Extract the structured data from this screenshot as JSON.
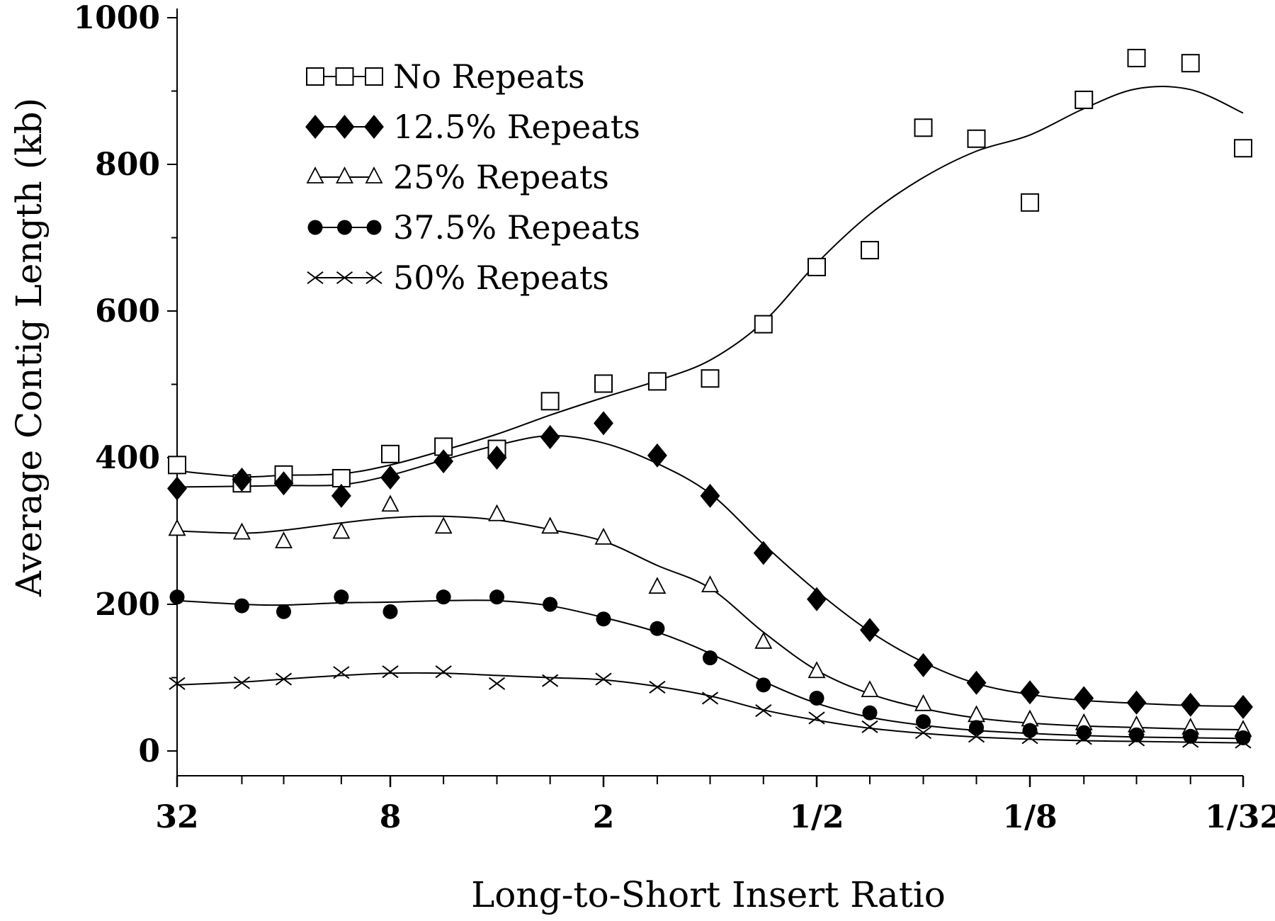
{
  "chart_data": {
    "type": "scatter",
    "title": "",
    "xlabel": "Long-to-Short Insert Ratio",
    "ylabel": "Average Contig Length (kb)",
    "x_scale": "log2 (reversed)",
    "x_ticks": [
      "32",
      "8",
      "2",
      "1/2",
      "1/8",
      "1/32"
    ],
    "x_tick_values": [
      32,
      8,
      2,
      0.5,
      0.125,
      0.03125
    ],
    "y_ticks": [
      "0",
      "200",
      "400",
      "600",
      "800",
      "1000"
    ],
    "ylim": [
      0,
      1000
    ],
    "grid": false,
    "legend_position": "top-left",
    "x": [
      32,
      21,
      16,
      11,
      8,
      5.66,
      4,
      2.83,
      2,
      1.41,
      1,
      0.707,
      0.5,
      0.354,
      0.25,
      0.177,
      0.125,
      0.088,
      0.0625,
      0.044,
      0.03125
    ],
    "series": [
      {
        "name": "No Repeats",
        "marker": "open-square",
        "values": [
          390,
          365,
          377,
          372,
          405,
          415,
          412,
          477,
          501,
          504,
          508,
          582,
          660,
          683,
          850,
          835,
          748,
          888,
          945,
          938,
          822
        ],
        "trend": [
          382,
          374,
          376,
          378,
          390,
          410,
          432,
          458,
          482,
          505,
          533,
          585,
          665,
          732,
          782,
          818,
          840,
          876,
          903,
          902,
          870
        ]
      },
      {
        "name": "12.5% Repeats",
        "marker": "filled-diamond",
        "values": [
          358,
          370,
          365,
          348,
          373,
          395,
          400,
          428,
          447,
          403,
          348,
          270,
          207,
          165,
          117,
          93,
          80,
          72,
          66,
          63,
          60
        ],
        "trend": [
          360,
          361,
          362,
          363,
          376,
          397,
          417,
          430,
          420,
          392,
          351,
          282,
          218,
          163,
          121,
          92,
          77,
          69,
          65,
          62,
          61
        ]
      },
      {
        "name": "25% Repeats",
        "marker": "open-triangle",
        "values": [
          302,
          297,
          285,
          298,
          335,
          305,
          322,
          305,
          290,
          223,
          225,
          148,
          108,
          82,
          63,
          48,
          42,
          37,
          34,
          31,
          28
        ],
        "trend": [
          300,
          297,
          301,
          311,
          318,
          320,
          315,
          302,
          286,
          253,
          222,
          162,
          110,
          78,
          58,
          45,
          38,
          34,
          32,
          30,
          29
        ]
      },
      {
        "name": "37.5% Repeats",
        "marker": "filled-circle",
        "values": [
          210,
          198,
          190,
          210,
          190,
          210,
          210,
          200,
          180,
          167,
          127,
          90,
          72,
          52,
          40,
          32,
          28,
          25,
          22,
          20,
          18
        ],
        "trend": [
          205,
          200,
          199,
          202,
          203,
          205,
          205,
          198,
          182,
          162,
          133,
          95,
          65,
          46,
          35,
          28,
          24,
          21,
          19,
          18,
          17
        ]
      },
      {
        "name": "50% Repeats",
        "marker": "cross",
        "values": [
          92,
          93,
          98,
          107,
          108,
          108,
          92,
          96,
          98,
          87,
          72,
          55,
          45,
          33,
          25,
          20,
          18,
          17,
          15,
          13,
          12
        ],
        "trend": [
          90,
          94,
          98,
          103,
          106,
          106,
          103,
          100,
          97,
          88,
          75,
          56,
          42,
          31,
          24,
          19,
          16,
          14,
          13,
          12,
          11
        ]
      }
    ]
  }
}
